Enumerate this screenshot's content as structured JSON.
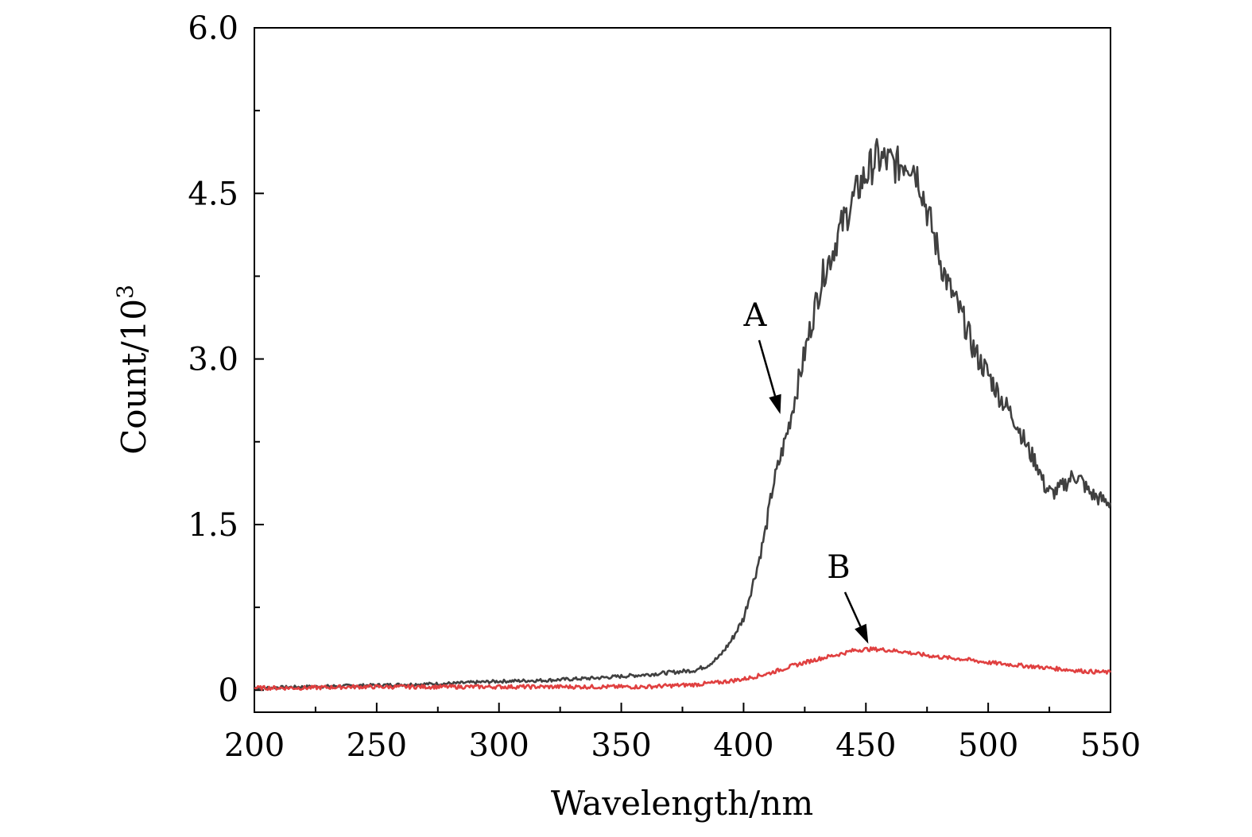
{
  "chart_data": {
    "type": "line",
    "xlabel": "Wavelength/nm",
    "ylabel": "Count/10",
    "ylabel_superscript": "3",
    "xlim": [
      200,
      550
    ],
    "ylim": [
      -0.2,
      6.0
    ],
    "x_ticks": [
      200,
      250,
      300,
      350,
      400,
      450,
      500,
      550
    ],
    "x_tick_labels": [
      "200",
      "250",
      "300",
      "350",
      "400",
      "450",
      "500",
      "550"
    ],
    "y_ticks": [
      0,
      1.5,
      3.0,
      4.5,
      6.0
    ],
    "y_tick_labels": [
      "0",
      "1.5",
      "3.0",
      "4.5",
      "6.0"
    ],
    "grid": false,
    "series": [
      {
        "name": "A",
        "color": "#404040",
        "x": [
          200,
          220,
          240,
          260,
          280,
          300,
          320,
          340,
          360,
          370,
          380,
          385,
          390,
          395,
          400,
          403,
          406,
          409,
          412,
          415,
          418,
          421,
          424,
          427,
          430,
          433,
          436,
          439,
          442,
          445,
          448,
          451,
          454,
          457,
          460,
          463,
          466,
          469,
          472,
          475,
          478,
          481,
          484,
          487,
          490,
          493,
          496,
          499,
          502,
          505,
          508,
          511,
          514,
          517,
          520,
          523,
          526,
          529,
          532,
          535,
          538,
          541,
          544,
          547,
          550
        ],
        "values": [
          0.02,
          0.03,
          0.04,
          0.05,
          0.06,
          0.08,
          0.09,
          0.11,
          0.14,
          0.16,
          0.18,
          0.22,
          0.3,
          0.45,
          0.65,
          0.9,
          1.15,
          1.45,
          1.85,
          2.1,
          2.35,
          2.65,
          2.95,
          3.25,
          3.55,
          3.8,
          3.95,
          4.15,
          4.3,
          4.45,
          4.6,
          4.7,
          4.82,
          4.8,
          4.78,
          4.75,
          4.8,
          4.78,
          4.62,
          4.35,
          4.1,
          3.85,
          3.65,
          3.5,
          3.35,
          3.15,
          3.0,
          2.9,
          2.78,
          2.65,
          2.55,
          2.45,
          2.3,
          2.15,
          2.05,
          1.85,
          1.78,
          1.82,
          1.88,
          1.95,
          1.9,
          1.8,
          1.75,
          1.72,
          1.7
        ]
      },
      {
        "name": "B",
        "color": "#e04040",
        "x": [
          200,
          220,
          240,
          260,
          280,
          300,
          320,
          340,
          360,
          370,
          380,
          390,
          400,
          410,
          420,
          430,
          440,
          445,
          450,
          455,
          460,
          465,
          470,
          480,
          490,
          500,
          510,
          520,
          530,
          540,
          550
        ],
        "values": [
          0.02,
          0.02,
          0.03,
          0.03,
          0.03,
          0.03,
          0.03,
          0.03,
          0.03,
          0.04,
          0.05,
          0.07,
          0.1,
          0.15,
          0.22,
          0.28,
          0.33,
          0.36,
          0.37,
          0.37,
          0.36,
          0.35,
          0.33,
          0.3,
          0.28,
          0.25,
          0.23,
          0.21,
          0.19,
          0.17,
          0.16
        ]
      }
    ],
    "annotations": [
      {
        "label": "A",
        "series": "A",
        "x": 415,
        "y": 2.5
      },
      {
        "label": "B",
        "series": "B",
        "x": 451,
        "y": 0.42
      }
    ]
  }
}
